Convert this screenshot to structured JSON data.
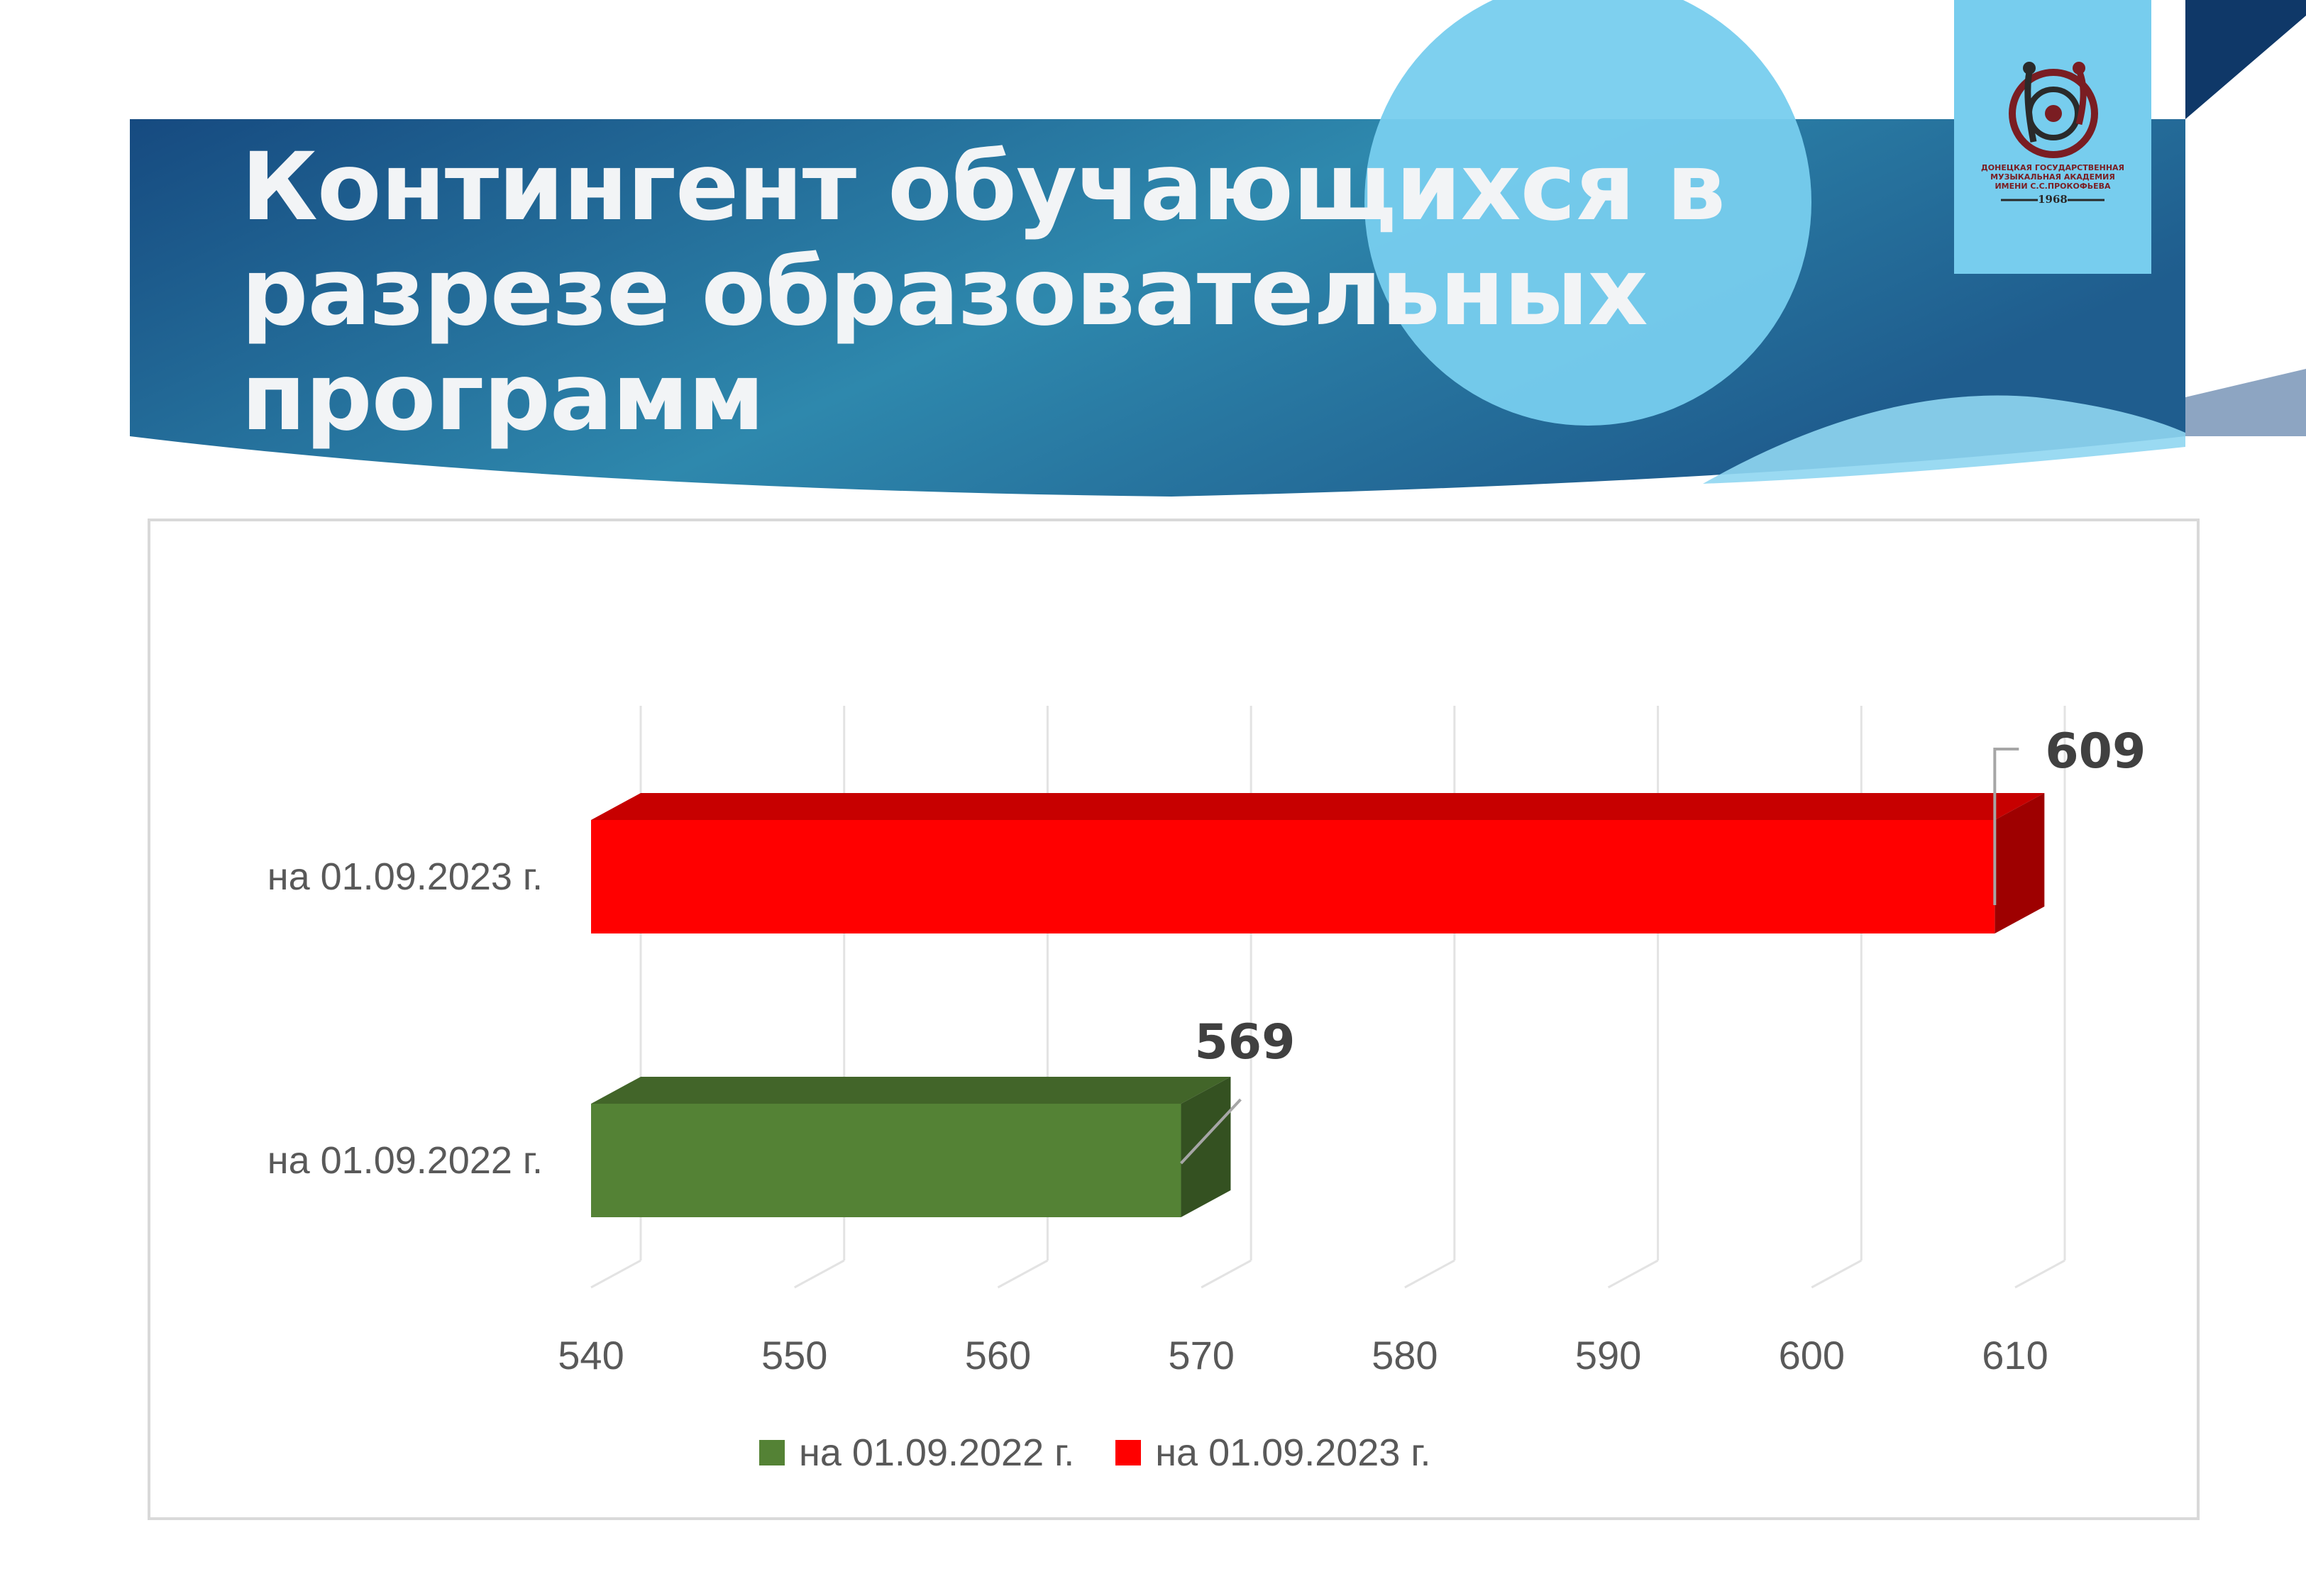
{
  "title_lines": [
    "Контингент обучающихся в",
    "разрезе образовательных",
    "программ"
  ],
  "logo": {
    "text_lines": [
      "ДОНЕЦКАЯ ГОСУДАРСТВЕННАЯ",
      "МУЗЫКАЛЬНАЯ АКАДЕМИЯ",
      "ИМЕНИ С.С.ПРОКОФЬЕВА"
    ],
    "year": "1968"
  },
  "colors": {
    "banner_dark": "#14457a",
    "banner_light": "#2f8bb0",
    "accent_light_blue": "#77cdee",
    "navy": "#0f3868",
    "series_2022": "#548235",
    "series_2023": "#ff0000"
  },
  "chart_data": {
    "type": "bar",
    "orientation": "horizontal",
    "style": "3d",
    "categories": [
      "на 01.09.2022 г.",
      "на 01.09.2023 г."
    ],
    "series": [
      {
        "name": "на 01.09.2022 г.",
        "values": [
          569,
          null
        ],
        "color": "#548235"
      },
      {
        "name": "на 01.09.2023 г.",
        "values": [
          null,
          609
        ],
        "color": "#ff0000"
      }
    ],
    "data_labels": [
      "569",
      "609"
    ],
    "xlim": [
      540,
      610
    ],
    "x_ticks": [
      "540",
      "550",
      "560",
      "570",
      "580",
      "590",
      "600",
      "610"
    ],
    "grid": true,
    "legend": "bottom",
    "title": "",
    "xlabel": "",
    "ylabel": ""
  }
}
